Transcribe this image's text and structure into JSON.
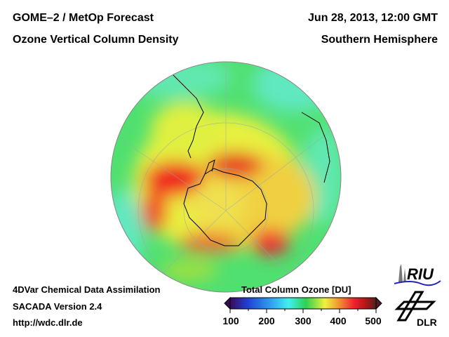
{
  "header": {
    "title_left_1": "GOME–2 / MetOp Forecast",
    "title_left_2": "Ozone Vertical Column Density",
    "title_right_1": "Jun 28, 2013, 12:00 GMT",
    "title_right_2": "Southern Hemisphere"
  },
  "footer": {
    "line1": "4DVar Chemical Data Assimilation",
    "line2": "SACADA Version 2.4",
    "line3": "http://wdc.dlr.de"
  },
  "colorbar": {
    "title": "Total Column Ozone [DU]",
    "ticks": [
      "100",
      "200",
      "300",
      "400",
      "500"
    ],
    "range": [
      100,
      500
    ],
    "colors": [
      "#3a0a5a",
      "#2040d0",
      "#30a0f0",
      "#40f0f0",
      "#30d050",
      "#f0f040",
      "#f09030",
      "#f02030",
      "#c01010",
      "#502020"
    ]
  },
  "logos": {
    "riu": "RIU",
    "dlr": "DLR"
  }
}
